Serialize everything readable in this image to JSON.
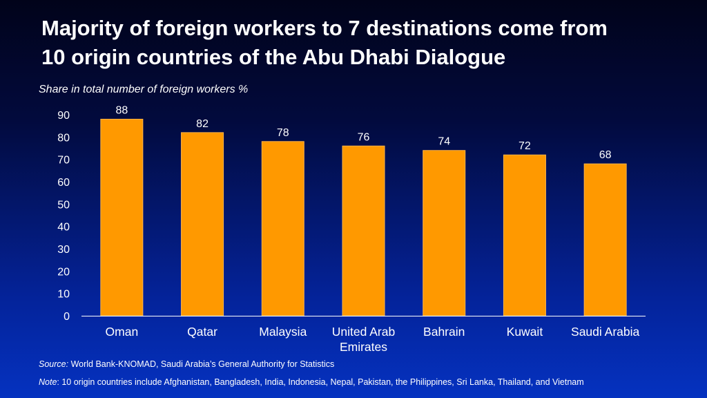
{
  "title_lines": [
    "Majority of foreign workers to 7 destinations come from",
    "10 origin countries of the Abu Dhabi Dialogue"
  ],
  "subtitle": "Share in total number of foreign workers %",
  "source_label": "Source:",
  "source_text": "World Bank-KNOMAD, Saudi Arabia’s General Authority for Statistics",
  "note_label": "Note",
  "note_text": ": 10 origin countries include Afghanistan, Bangladesh, India, Indonesia, Nepal, Pakistan, the Philippines, Sri Lanka, Thailand, and Vietnam",
  "colors": {
    "bar": "#ff9900",
    "bar_edge": "#ffb347",
    "axis": "#ffffff"
  },
  "chart_data": {
    "type": "bar",
    "categories": [
      "Oman",
      "Qatar",
      "Malaysia",
      "United Arab Emirates",
      "Bahrain",
      "Kuwait",
      "Saudi Arabia"
    ],
    "category_lines": [
      [
        "Oman"
      ],
      [
        "Qatar"
      ],
      [
        "Malaysia"
      ],
      [
        "United Arab",
        "Emirates"
      ],
      [
        "Bahrain"
      ],
      [
        "Kuwait"
      ],
      [
        "Saudi Arabia"
      ]
    ],
    "values": [
      88,
      82,
      78,
      76,
      74,
      72,
      68
    ],
    "data_labels": [
      "88",
      "82",
      "78",
      "76",
      "74",
      "72",
      "68"
    ],
    "ylim": [
      0,
      90
    ],
    "yticks": [
      0,
      10,
      20,
      30,
      40,
      50,
      60,
      70,
      80,
      90
    ],
    "ylabel": "Share in total number of foreign workers %",
    "xlabel": "",
    "grid": false,
    "legend": "none"
  }
}
